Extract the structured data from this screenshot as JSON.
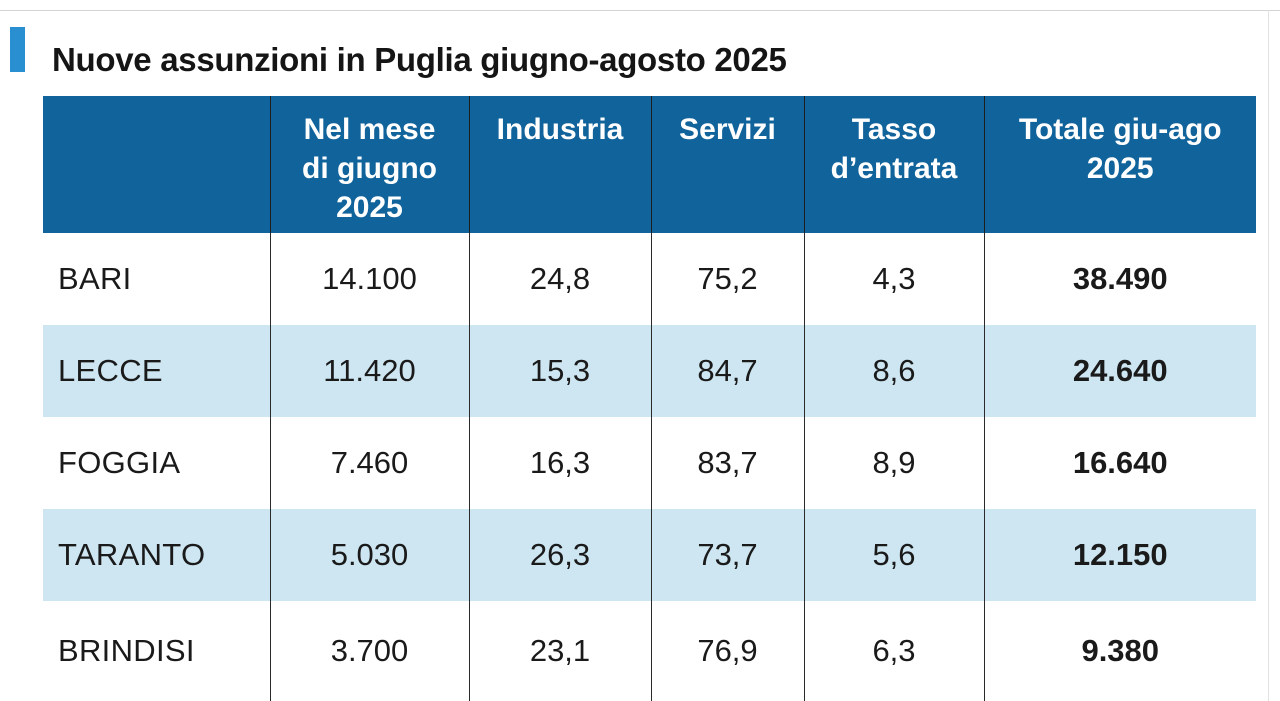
{
  "chart_data": {
    "type": "table",
    "title": "Nuove assunzioni in Puglia giugno-agosto 2025",
    "columns": [
      "",
      "Nel mese di giugno 2025",
      "Industria",
      "Servizi",
      "Tasso d’entrata",
      "Totale giu-ago 2025"
    ],
    "header_lines": [
      [
        ""
      ],
      [
        "Nel mese",
        "di giugno",
        "2025"
      ],
      [
        "Industria"
      ],
      [
        "Servizi"
      ],
      [
        "Tasso",
        "d’entrata"
      ],
      [
        "Totale giu-ago",
        "2025"
      ]
    ],
    "rows": [
      [
        "BARI",
        "14.100",
        "24,8",
        "75,2",
        "4,3",
        "38.490"
      ],
      [
        "LECCE",
        "11.420",
        "15,3",
        "84,7",
        "8,6",
        "24.640"
      ],
      [
        "FOGGIA",
        "7.460",
        "16,3",
        "83,7",
        "8,9",
        "16.640"
      ],
      [
        "TARANTO",
        "5.030",
        "26,3",
        "73,7",
        "5,6",
        "12.150"
      ],
      [
        "BRINDISI",
        "3.700",
        "23,1",
        "76,9",
        "6,3",
        "9.380"
      ]
    ],
    "colors": {
      "header_bg": "#11639b",
      "stripe": "#cde6f2",
      "accent": "#2a8fd0"
    }
  }
}
